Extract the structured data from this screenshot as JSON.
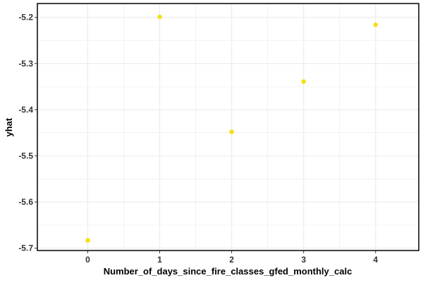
{
  "chart_data": {
    "type": "scatter",
    "xlabel": "Number_of_days_since_fire_classes_gfed_monthly_calc",
    "ylabel": "yhat",
    "x": [
      0,
      1,
      2,
      3,
      4
    ],
    "y": [
      -5.683,
      -5.199,
      -5.448,
      -5.339,
      -5.216
    ],
    "xlim": [
      -0.7,
      4.6
    ],
    "ylim": [
      -5.705,
      -5.17
    ],
    "xticks": [
      0,
      1,
      2,
      3,
      4
    ],
    "yticks": [
      -5.2,
      -5.3,
      -5.4,
      -5.5,
      -5.6,
      -5.7
    ],
    "ytick_labels": [
      "-5.2",
      "-5.3",
      "-5.4",
      "-5.5",
      "-5.6",
      "-5.7"
    ],
    "grid": true,
    "legend": "none",
    "point_color": "#F5DF17",
    "grid_color": "#EBEBEB",
    "panel_border_color": "#000000"
  }
}
